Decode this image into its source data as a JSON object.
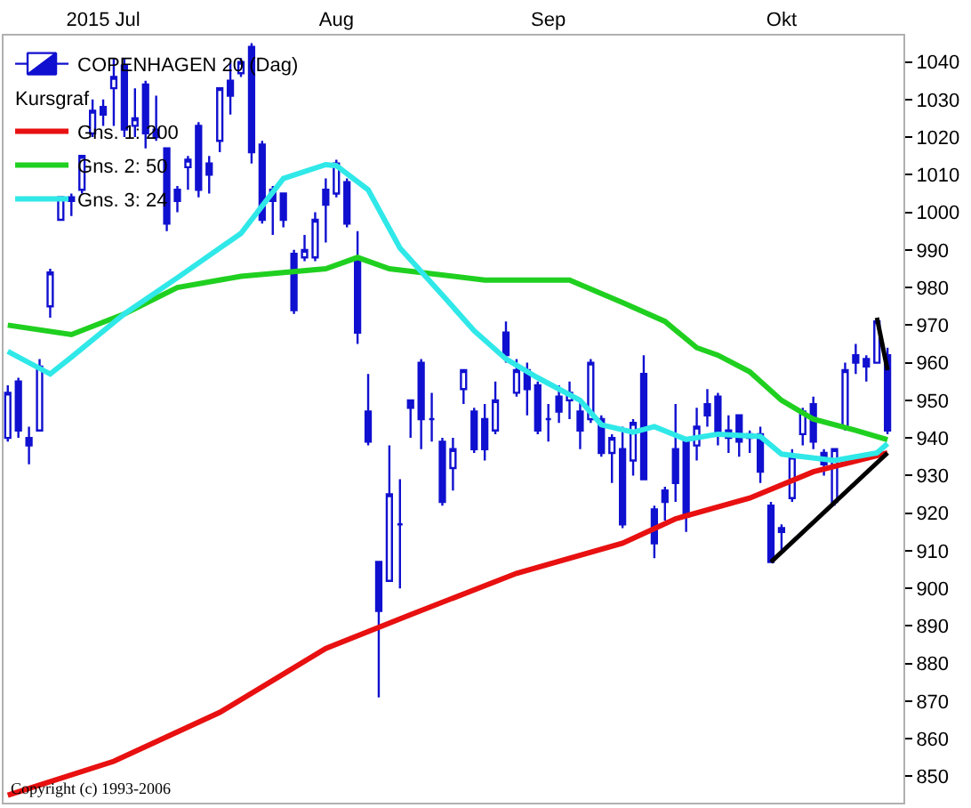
{
  "chart_data": {
    "type": "candlestick",
    "legend_title": "Kursgraf",
    "legend": "top left",
    "grid": false,
    "categories": [
      null,
      null,
      null,
      null,
      null,
      null,
      null,
      null,
      null,
      "2015 Jul",
      null,
      null,
      null,
      null,
      null,
      null,
      null,
      null,
      null,
      null,
      null,
      null,
      null,
      null,
      null,
      null,
      null,
      null,
      null,
      null,
      null,
      "Aug",
      null,
      null,
      null,
      null,
      null,
      null,
      null,
      null,
      null,
      null,
      null,
      null,
      null,
      null,
      null,
      null,
      null,
      null,
      null,
      "Sep",
      null,
      null,
      null,
      null,
      null,
      null,
      null,
      null,
      null,
      null,
      null,
      null,
      null,
      null,
      null,
      null,
      null,
      null,
      null,
      null,
      null,
      "Okt",
      null,
      null,
      null,
      null,
      null,
      null,
      null,
      null,
      null,
      null
    ],
    "ylim": [
      843,
      1047
    ],
    "yticks": [
      850,
      860,
      870,
      880,
      890,
      900,
      910,
      920,
      930,
      940,
      950,
      960,
      970,
      980,
      990,
      1000,
      1010,
      1020,
      1030,
      1040
    ],
    "annotations": [
      "Copyright (c) 1993-2006"
    ],
    "series": [
      {
        "name": "COPENHAGEN 20 (Dag)",
        "color": "#1010d0",
        "ohlc": [
          [
            940,
            954,
            939,
            952
          ],
          [
            955,
            956,
            940,
            942
          ],
          [
            940,
            943,
            933,
            938
          ],
          [
            942,
            961,
            942,
            959
          ],
          [
            975,
            985,
            972,
            984
          ],
          [
            998,
            1004,
            998,
            1004
          ],
          [
            1004,
            1005,
            999,
            1003
          ],
          [
            1006,
            1015,
            1005,
            1015
          ],
          [
            1021,
            1030,
            1020,
            1027
          ],
          [
            1028,
            1030,
            1023,
            1026
          ],
          [
            1033,
            1041,
            1023,
            1036
          ],
          [
            1039,
            1041,
            1020,
            1022
          ],
          [
            1023,
            1033,
            1020,
            1025
          ],
          [
            1034,
            1035,
            1017,
            1021
          ],
          [
            1022,
            1031,
            1019,
            1020
          ],
          [
            1017,
            1017,
            995,
            997
          ],
          [
            1006,
            1007,
            1000,
            1003
          ],
          [
            1012,
            1015,
            1006,
            1014
          ],
          [
            1023,
            1024,
            1004,
            1006
          ],
          [
            1013,
            1015,
            1005,
            1010
          ],
          [
            1019,
            1033,
            1016,
            1033
          ],
          [
            1035,
            1040,
            1026,
            1031
          ],
          [
            1037,
            1041,
            1036,
            1040
          ],
          [
            1044,
            1045,
            1013,
            1016
          ],
          [
            1018,
            1019,
            997,
            998
          ],
          [
            1006,
            1007,
            994,
            1003
          ],
          [
            1005,
            1005,
            996,
            998
          ],
          [
            989,
            990,
            973,
            974
          ],
          [
            988,
            994,
            987,
            990
          ],
          [
            988,
            1000,
            987,
            998
          ],
          [
            1006,
            1009,
            992,
            1002
          ],
          [
            1005,
            1014,
            1004,
            1013
          ],
          [
            1008,
            1009,
            996,
            997
          ],
          [
            988,
            995,
            965,
            968
          ],
          [
            947,
            957,
            938,
            939
          ],
          [
            907,
            907,
            871,
            894
          ],
          [
            902,
            938,
            902,
            925
          ],
          [
            917,
            929,
            900,
            917
          ],
          [
            950,
            950,
            940,
            948
          ],
          [
            960,
            961,
            937,
            945
          ],
          [
            945,
            952,
            939,
            945
          ],
          [
            939,
            940,
            922,
            923
          ],
          [
            932,
            940,
            926,
            937
          ],
          [
            953,
            958,
            949,
            958
          ],
          [
            947,
            948,
            936,
            937
          ],
          [
            945,
            949,
            934,
            937
          ],
          [
            942,
            955,
            941,
            950
          ],
          [
            968,
            971,
            960,
            962
          ],
          [
            952,
            961,
            951,
            958
          ],
          [
            958,
            960,
            946,
            953
          ],
          [
            954,
            955,
            941,
            942
          ],
          [
            945,
            949,
            939,
            945
          ],
          [
            951,
            954,
            944,
            947
          ],
          [
            950,
            955,
            945,
            952
          ],
          [
            947,
            950,
            937,
            942
          ],
          [
            945,
            961,
            944,
            960
          ],
          [
            945,
            946,
            935,
            936
          ],
          [
            936,
            941,
            928,
            940
          ],
          [
            937,
            943,
            916,
            917
          ],
          [
            934,
            945,
            930,
            944
          ],
          [
            957,
            962,
            929,
            929
          ],
          [
            921,
            922,
            908,
            912
          ],
          [
            926,
            927,
            918,
            923
          ],
          [
            937,
            949,
            923,
            928
          ],
          [
            939,
            940,
            915,
            919
          ],
          [
            938,
            948,
            934,
            943
          ],
          [
            949,
            953,
            943,
            946
          ],
          [
            951,
            952,
            938,
            941
          ],
          [
            942,
            946,
            936,
            940
          ],
          [
            946,
            946,
            935,
            939
          ],
          [
            940,
            942,
            936,
            941
          ],
          [
            941,
            943,
            928,
            931
          ],
          [
            922,
            923,
            907,
            907
          ],
          [
            916,
            917,
            910,
            915
          ],
          [
            924,
            937,
            923,
            935
          ],
          [
            941,
            948,
            938,
            947
          ],
          [
            949,
            951,
            937,
            939
          ],
          [
            936,
            937,
            930,
            933
          ],
          [
            923,
            937,
            922,
            937
          ],
          [
            943,
            960,
            942,
            958
          ],
          [
            962,
            965,
            957,
            960
          ],
          [
            961,
            962,
            955,
            959
          ],
          [
            960,
            971,
            960,
            971
          ],
          [
            962,
            964,
            941,
            942
          ]
        ]
      },
      {
        "name": "Gns. 1: 200",
        "type": "line",
        "color": "#e81010",
        "values": [
          845,
          null,
          null,
          null,
          null,
          null,
          null,
          null,
          null,
          null,
          854,
          null,
          null,
          null,
          null,
          null,
          null,
          null,
          null,
          null,
          867,
          null,
          null,
          null,
          null,
          null,
          null,
          null,
          null,
          null,
          884,
          null,
          null,
          null,
          null,
          null,
          null,
          null,
          893,
          null,
          null,
          null,
          null,
          null,
          null,
          null,
          null,
          null,
          904,
          null,
          null,
          null,
          null,
          null,
          null,
          null,
          null,
          null,
          912,
          null,
          null,
          null,
          null,
          918.5,
          null,
          null,
          null,
          null,
          null,
          null,
          924,
          null,
          null,
          null,
          null,
          null,
          931,
          null,
          null,
          null,
          null,
          null,
          null,
          936
        ]
      },
      {
        "name": "Gns. 2: 50",
        "type": "line",
        "color": "#20d020",
        "values": [
          970,
          null,
          null,
          null,
          null,
          null,
          967.5,
          null,
          null,
          null,
          null,
          973,
          null,
          null,
          null,
          null,
          980,
          null,
          null,
          null,
          null,
          null,
          983,
          null,
          null,
          null,
          null,
          null,
          null,
          null,
          985,
          null,
          null,
          988,
          null,
          null,
          985,
          null,
          null,
          null,
          null,
          null,
          null,
          null,
          null,
          982,
          null,
          null,
          null,
          null,
          null,
          null,
          null,
          982,
          null,
          null,
          null,
          null,
          976,
          null,
          null,
          null,
          971,
          null,
          null,
          964,
          null,
          962,
          null,
          null,
          957.6,
          null,
          null,
          950,
          null,
          null,
          945,
          null,
          null,
          null,
          942,
          null,
          null,
          939.5
        ]
      },
      {
        "name": "Gns. 3: 24",
        "type": "line",
        "color": "#30e8e8",
        "values": [
          963,
          null,
          null,
          null,
          957,
          null,
          961.5,
          null,
          null,
          null,
          null,
          973,
          null,
          null,
          null,
          null,
          982.6,
          null,
          null,
          null,
          null,
          null,
          994.4,
          null,
          null,
          null,
          1009,
          null,
          null,
          null,
          1012.7,
          1012.4,
          null,
          null,
          1006,
          null,
          null,
          990.5,
          null,
          null,
          null,
          978,
          null,
          null,
          968.5,
          null,
          null,
          961,
          null,
          null,
          956,
          null,
          null,
          null,
          950,
          null,
          943.5,
          null,
          null,
          941.5,
          null,
          943,
          null,
          null,
          939.6,
          null,
          null,
          941,
          null,
          null,
          null,
          940.4,
          null,
          935.7,
          null,
          null,
          null,
          null,
          934,
          null,
          null,
          null,
          936,
          938.5
        ]
      },
      {
        "type": "line",
        "color": "#000000",
        "values": [
          null,
          null,
          null,
          null,
          null,
          null,
          null,
          null,
          null,
          null,
          null,
          null,
          null,
          null,
          null,
          null,
          null,
          null,
          null,
          null,
          null,
          null,
          null,
          null,
          null,
          null,
          null,
          null,
          null,
          null,
          null,
          null,
          null,
          null,
          null,
          null,
          null,
          null,
          null,
          null,
          null,
          null,
          null,
          null,
          null,
          null,
          null,
          null,
          null,
          null,
          null,
          null,
          null,
          null,
          null,
          null,
          null,
          null,
          null,
          null,
          null,
          null,
          null,
          null,
          null,
          null,
          null,
          null,
          null,
          null,
          null,
          null,
          907,
          null,
          null,
          null,
          null,
          null,
          null,
          null,
          null,
          null,
          null,
          936
        ]
      },
      {
        "type": "line",
        "color": "#000000",
        "values": [
          null,
          null,
          null,
          null,
          null,
          null,
          null,
          null,
          null,
          null,
          null,
          null,
          null,
          null,
          null,
          null,
          null,
          null,
          null,
          null,
          null,
          null,
          null,
          null,
          null,
          null,
          null,
          null,
          null,
          null,
          null,
          null,
          null,
          null,
          null,
          null,
          null,
          null,
          null,
          null,
          null,
          null,
          null,
          null,
          null,
          null,
          null,
          null,
          null,
          null,
          null,
          null,
          null,
          null,
          null,
          null,
          null,
          null,
          null,
          null,
          null,
          null,
          null,
          null,
          null,
          null,
          null,
          null,
          null,
          null,
          null,
          null,
          null,
          null,
          null,
          null,
          null,
          null,
          null,
          null,
          null,
          null,
          972,
          958
        ]
      }
    ]
  }
}
